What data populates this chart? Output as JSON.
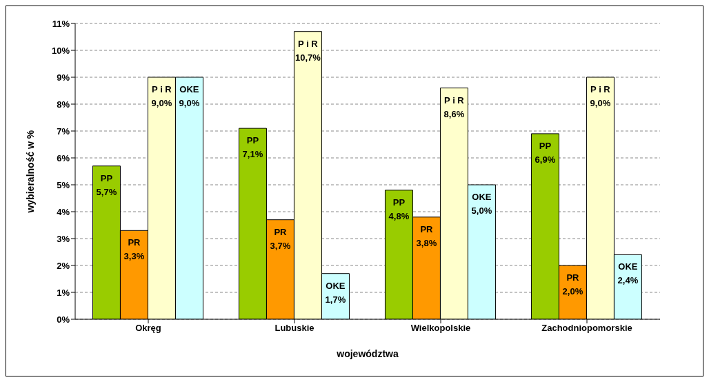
{
  "chart_data": {
    "type": "bar",
    "xlabel": "województwa",
    "ylabel": "wybieralność w %",
    "categories": [
      "Okręg",
      "Lubuskie",
      "Wielkopolskie",
      "Zachodniopomorskie"
    ],
    "series": [
      {
        "name": "PP",
        "color": "#99cc00",
        "values": [
          5.7,
          7.1,
          4.8,
          6.9
        ],
        "value_labels": [
          "5,7%",
          "7,1%",
          "4,8%",
          "6,9%"
        ]
      },
      {
        "name": "PR",
        "color": "#ff9900",
        "values": [
          3.3,
          3.7,
          3.8,
          2.0
        ],
        "value_labels": [
          "3,3%",
          "3,7%",
          "3,8%",
          "2,0%"
        ]
      },
      {
        "name": "P i R",
        "color": "#ffffcc",
        "values": [
          9.0,
          10.7,
          8.6,
          9.0
        ],
        "value_labels": [
          "9,0%",
          "10,7%",
          "8,6%",
          "9,0%"
        ]
      },
      {
        "name": "OKE",
        "color": "#ccffff",
        "values": [
          9.0,
          1.7,
          5.0,
          2.4
        ],
        "value_labels": [
          "9,0%",
          "1,7%",
          "5,0%",
          "2,4%"
        ]
      }
    ],
    "ylim": [
      0,
      11
    ],
    "yticks": [
      {
        "value": 0,
        "label": "0%"
      },
      {
        "value": 1,
        "label": "1%"
      },
      {
        "value": 2,
        "label": "2%"
      },
      {
        "value": 3,
        "label": "3%"
      },
      {
        "value": 4,
        "label": "4%"
      },
      {
        "value": 5,
        "label": "5%"
      },
      {
        "value": 6,
        "label": "6%"
      },
      {
        "value": 7,
        "label": "7%"
      },
      {
        "value": 8,
        "label": "8%"
      },
      {
        "value": 9,
        "label": "9%"
      },
      {
        "value": 10,
        "label": "10%"
      },
      {
        "value": 11,
        "label": "11%"
      }
    ],
    "grid": "y",
    "legend": false
  }
}
